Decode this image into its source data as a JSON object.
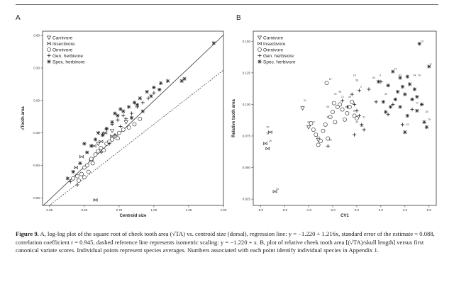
{
  "panel_a_letter": "A",
  "panel_b_letter": "B",
  "legend": {
    "carnivore": "Carnivore",
    "insectivore": "Insectivore",
    "omnivore": "Omnivore",
    "gen_herbivore": "Gen. herbivore",
    "spec_herbivore": "Spec. herbivore"
  },
  "caption": {
    "label": "Figure 9.",
    "text": "A, log-log plot of the square root of cheek tooth area (√TA) vs. centroid size (dorsal), regression line: y = −1.220 + 1.216x, standard error of the estimate = 0.088, correlation coefficient r = 0.945, dashed reference line represents isometric scaling: y = −1.220 + x. B, plot of relative cheek tooth area [(√TA)/skull length] versus first canonical variate scores. Individual points represent species averages. Numbers associated with each point identify individual species in Appendix 1."
  },
  "chart_data": [
    {
      "type": "scatter",
      "panel": "A",
      "xlabel": "Centroid size",
      "ylabel": "√Tooth area",
      "xlim": [
        0.2,
        1.5
      ],
      "ylim": [
        -0.97,
        0.64
      ],
      "x_ticks": [
        "0.25",
        "0.50",
        "0.75",
        "1.00",
        "1.25",
        "1.50"
      ],
      "y_ticks": [
        "0.60",
        "0.30",
        "0.00",
        "-0.30",
        "-0.60",
        "-0.90"
      ],
      "legend_position": "top-left",
      "regression_line": {
        "intercept": -1.22,
        "slope": 1.216
      },
      "isometric_line": {
        "intercept": -1.22,
        "slope": 1.0
      },
      "series": [
        {
          "name": "Carnivore",
          "marker": "triangle",
          "points": [
            [
              0.64,
              -0.31
            ],
            [
              0.7,
              -0.28
            ],
            [
              0.8,
              -0.2
            ],
            [
              0.6,
              -0.4
            ]
          ]
        },
        {
          "name": "Insectivore",
          "marker": "bowtie",
          "points": [
            [
              0.55,
              -0.55
            ],
            [
              0.44,
              -0.62
            ],
            [
              0.48,
              -0.52
            ],
            [
              0.57,
              -0.42
            ],
            [
              0.62,
              -0.38
            ],
            [
              0.7,
              -0.33
            ],
            [
              0.65,
              -0.3
            ],
            [
              0.58,
              -0.92
            ]
          ]
        },
        {
          "name": "Omnivore",
          "marker": "circle",
          "points": [
            [
              0.42,
              -0.72
            ],
            [
              0.45,
              -0.7
            ],
            [
              0.48,
              -0.68
            ],
            [
              0.5,
              -0.62
            ],
            [
              0.52,
              -0.6
            ],
            [
              0.55,
              -0.54
            ],
            [
              0.58,
              -0.5
            ],
            [
              0.6,
              -0.47
            ],
            [
              0.62,
              -0.44
            ],
            [
              0.66,
              -0.4
            ],
            [
              0.7,
              -0.36
            ],
            [
              0.72,
              -0.33
            ],
            [
              0.75,
              -0.3
            ],
            [
              0.78,
              -0.27
            ],
            [
              0.82,
              -0.25
            ],
            [
              0.86,
              -0.22
            ],
            [
              0.46,
              -0.74
            ],
            [
              0.53,
              -0.66
            ],
            [
              0.64,
              -0.46
            ],
            [
              0.68,
              -0.38
            ],
            [
              0.9,
              -0.17
            ],
            [
              0.74,
              -0.35
            ],
            [
              0.56,
              -0.58
            ],
            [
              0.5,
              -0.71
            ]
          ]
        },
        {
          "name": "Gen. herbivore",
          "marker": "plus",
          "points": [
            [
              0.4,
              -0.75
            ],
            [
              0.45,
              -0.78
            ],
            [
              0.62,
              -0.48
            ],
            [
              0.68,
              -0.4
            ],
            [
              0.72,
              -0.32
            ],
            [
              0.76,
              -0.24
            ],
            [
              0.8,
              -0.17
            ],
            [
              0.84,
              -0.12
            ],
            [
              0.88,
              -0.06
            ],
            [
              0.92,
              -0.02
            ],
            [
              0.96,
              0.02
            ],
            [
              1.0,
              0.07
            ],
            [
              0.74,
              -0.18
            ],
            [
              0.66,
              -0.27
            ],
            [
              0.78,
              -0.14
            ],
            [
              0.7,
              -0.22
            ]
          ]
        },
        {
          "name": "Spec. herbivore",
          "marker": "star",
          "points": [
            [
              0.38,
              -0.72
            ],
            [
              0.42,
              -0.66
            ],
            [
              0.47,
              -0.58
            ],
            [
              0.52,
              -0.48
            ],
            [
              0.55,
              -0.42
            ],
            [
              0.58,
              -0.36
            ],
            [
              0.63,
              -0.32
            ],
            [
              0.66,
              -0.26
            ],
            [
              0.7,
              -0.2
            ],
            [
              0.74,
              -0.14
            ],
            [
              0.78,
              -0.1
            ],
            [
              0.82,
              -0.06
            ],
            [
              0.86,
              -0.02
            ],
            [
              0.9,
              0.02
            ],
            [
              0.95,
              0.08
            ],
            [
              1.0,
              0.12
            ],
            [
              1.05,
              0.16
            ],
            [
              1.1,
              0.18
            ],
            [
              1.2,
              0.18
            ],
            [
              1.22,
              0.2
            ],
            [
              1.43,
              0.53
            ],
            [
              0.72,
              -0.12
            ],
            [
              0.76,
              -0.08
            ],
            [
              0.84,
              -0.16
            ],
            [
              0.92,
              -0.1
            ],
            [
              0.5,
              -0.4
            ],
            [
              0.6,
              -0.3
            ],
            [
              0.98,
              0.04
            ],
            [
              1.04,
              0.1
            ],
            [
              0.88,
              -0.04
            ]
          ]
        }
      ]
    },
    {
      "type": "scatter",
      "panel": "B",
      "xlabel": "CV1",
      "ylabel": "Relative tooth area",
      "xlim": [
        -8.6,
        6.6
      ],
      "ylim": [
        0.02,
        0.158
      ],
      "x_ticks": [
        "-8.0",
        "-6.0",
        "-4.0",
        "-2.0",
        "0.0",
        "2.0",
        "4.0",
        "6.0"
      ],
      "y_ticks": [
        "0.150",
        "0.125",
        "0.100",
        "0.075",
        "0.050",
        "0.025"
      ],
      "legend_position": "top-left",
      "series": [
        {
          "name": "Carnivore",
          "marker": "triangle",
          "points": [
            [
              -4.5,
              0.097
            ],
            [
              -4.0,
              0.082
            ],
            [
              -3.2,
              0.072
            ]
          ]
        },
        {
          "name": "Insectivore",
          "marker": "bowtie",
          "points": [
            [
              -6.8,
              0.031
            ],
            [
              -7.6,
              0.069
            ],
            [
              -7.4,
              0.065
            ],
            [
              -7.2,
              0.078
            ]
          ]
        },
        {
          "name": "Omnivore",
          "marker": "circle",
          "points": [
            [
              -3.8,
              0.085
            ],
            [
              -3.6,
              0.08
            ],
            [
              -3.4,
              0.076
            ],
            [
              -3.0,
              0.071
            ],
            [
              -2.8,
              0.079
            ],
            [
              -2.6,
              0.084
            ],
            [
              -2.4,
              0.073
            ],
            [
              -2.2,
              0.09
            ],
            [
              -2.0,
              0.094
            ],
            [
              -1.8,
              0.086
            ],
            [
              -1.6,
              0.098
            ],
            [
              -1.4,
              0.1
            ],
            [
              -1.2,
              0.096
            ],
            [
              -1.0,
              0.088
            ],
            [
              -0.8,
              0.093
            ],
            [
              -0.6,
              0.098
            ],
            [
              -0.4,
              0.102
            ],
            [
              -0.2,
              0.091
            ],
            [
              0.0,
              0.089
            ],
            [
              -1.9,
              0.101
            ],
            [
              -2.5,
              0.117
            ],
            [
              -3.2,
              0.068
            ]
          ]
        },
        {
          "name": "Gen. herbivore",
          "marker": "plus",
          "points": [
            [
              -2.4,
              0.067
            ],
            [
              -1.2,
              0.103
            ],
            [
              -0.8,
              0.098
            ],
            [
              -0.4,
              0.108
            ],
            [
              -0.2,
              0.1
            ],
            [
              0.0,
              0.095
            ],
            [
              0.2,
              0.091
            ],
            [
              0.4,
              0.084
            ],
            [
              0.6,
              0.08
            ],
            [
              -0.2,
              0.076
            ],
            [
              0.2,
              0.111
            ],
            [
              1.0,
              0.112
            ],
            [
              1.6,
              0.102
            ],
            [
              2.0,
              0.118
            ],
            [
              2.6,
              0.092
            ],
            [
              3.0,
              0.1
            ],
            [
              3.8,
              0.084
            ],
            [
              4.6,
              0.096
            ]
          ]
        },
        {
          "name": "Spec. herbivore",
          "marker": "star",
          "points": [
            [
              1.8,
              0.118
            ],
            [
              2.2,
              0.102
            ],
            [
              2.4,
              0.094
            ],
            [
              2.8,
              0.098
            ],
            [
              3.0,
              0.126
            ],
            [
              3.2,
              0.104
            ],
            [
              3.4,
              0.11
            ],
            [
              3.6,
              0.121
            ],
            [
              3.8,
              0.114
            ],
            [
              4.0,
              0.108
            ],
            [
              4.2,
              0.122
            ],
            [
              4.4,
              0.116
            ],
            [
              4.6,
              0.104
            ],
            [
              4.8,
              0.112
            ],
            [
              5.0,
              0.095
            ],
            [
              5.2,
              0.148
            ],
            [
              5.4,
              0.1
            ],
            [
              5.6,
              0.086
            ],
            [
              5.8,
              0.082
            ],
            [
              6.0,
              0.13
            ],
            [
              2.6,
              0.115
            ],
            [
              3.6,
              0.098
            ],
            [
              4.2,
              0.091
            ],
            [
              5.0,
              0.106
            ],
            [
              4.0,
              0.078
            ]
          ]
        }
      ],
      "point_labels": [
        {
          "x": 5.2,
          "y": 0.148,
          "text": "19"
        },
        {
          "x": 6.0,
          "y": 0.13,
          "text": "8"
        },
        {
          "x": 3.0,
          "y": 0.126,
          "text": "73"
        },
        {
          "x": 4.6,
          "y": 0.121,
          "text": "54"
        },
        {
          "x": 5.0,
          "y": 0.121,
          "text": "50"
        },
        {
          "x": -0.4,
          "y": 0.121,
          "text": "18"
        },
        {
          "x": -2.4,
          "y": 0.118,
          "text": "67"
        },
        {
          "x": 1.2,
          "y": 0.119,
          "text": "59"
        },
        {
          "x": 1.8,
          "y": 0.121,
          "text": "9"
        },
        {
          "x": 3.4,
          "y": 0.121,
          "text": "63"
        },
        {
          "x": -0.2,
          "y": 0.117,
          "text": "58"
        },
        {
          "x": -4.5,
          "y": 0.101,
          "text": "51"
        },
        {
          "x": -1.6,
          "y": 0.108,
          "text": "68"
        },
        {
          "x": -1.4,
          "y": 0.104,
          "text": "72"
        },
        {
          "x": -2.0,
          "y": 0.106,
          "text": "78"
        },
        {
          "x": -0.8,
          "y": 0.104,
          "text": "44"
        },
        {
          "x": 0.2,
          "y": 0.112,
          "text": "3"
        },
        {
          "x": 2.2,
          "y": 0.106,
          "text": "32"
        },
        {
          "x": 4.8,
          "y": 0.099,
          "text": "17"
        },
        {
          "x": 5.8,
          "y": 0.086,
          "text": "79"
        },
        {
          "x": 4.0,
          "y": 0.082,
          "text": "33"
        },
        {
          "x": 5.6,
          "y": 0.092,
          "text": "28"
        },
        {
          "x": -0.4,
          "y": 0.093,
          "text": "65"
        },
        {
          "x": 0.4,
          "y": 0.088,
          "text": "31"
        },
        {
          "x": 0.2,
          "y": 0.081,
          "text": "25"
        },
        {
          "x": -0.2,
          "y": 0.084,
          "text": "20"
        },
        {
          "x": -2.6,
          "y": 0.088,
          "text": "42"
        },
        {
          "x": -2.6,
          "y": 0.096,
          "text": "55"
        },
        {
          "x": -3.8,
          "y": 0.084,
          "text": "17"
        },
        {
          "x": -4.2,
          "y": 0.084,
          "text": "33"
        },
        {
          "x": -3.4,
          "y": 0.072,
          "text": "13"
        },
        {
          "x": -2.4,
          "y": 0.07,
          "text": "26"
        },
        {
          "x": -7.6,
          "y": 0.08,
          "text": "53"
        },
        {
          "x": -7.6,
          "y": 0.075,
          "text": "52"
        },
        {
          "x": -7.4,
          "y": 0.069,
          "text": "29"
        },
        {
          "x": -6.8,
          "y": 0.031,
          "text": "34"
        }
      ]
    }
  ]
}
